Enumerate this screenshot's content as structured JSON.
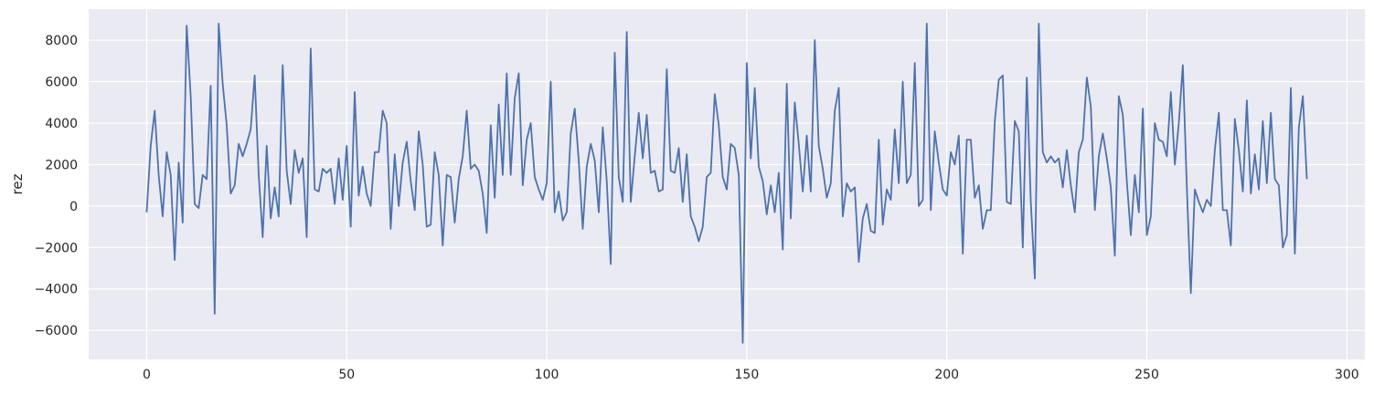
{
  "chart_data": {
    "type": "line",
    "title": "",
    "xlabel": "",
    "ylabel": "rez",
    "xlim": [
      -14.5,
      304.5
    ],
    "ylim": [
      -7400,
      9500
    ],
    "xticks": [
      0,
      50,
      100,
      150,
      200,
      250,
      300
    ],
    "yticks": [
      -6000,
      -4000,
      -2000,
      0,
      2000,
      4000,
      6000,
      8000
    ],
    "grid": true,
    "background": "#eaeaf2",
    "grid_color": "#ffffff",
    "line_color": "#4c72b0",
    "series": [
      {
        "x_start": 0,
        "values": [
          -300,
          2900,
          4600,
          1500,
          -500,
          2600,
          1500,
          -2600,
          2100,
          -800,
          8700,
          5300,
          100,
          -100,
          1500,
          1300,
          5800,
          -5200,
          8800,
          5900,
          3900,
          600,
          1000,
          3000,
          2400,
          3000,
          3700,
          6300,
          1500,
          -1500,
          2900,
          -600,
          900,
          -500,
          6800,
          1700,
          100,
          2700,
          1600,
          2300,
          -1500,
          7600,
          800,
          700,
          1800,
          1600,
          1800,
          100,
          2300,
          300,
          2900,
          -1000,
          5500,
          500,
          1900,
          600,
          0,
          2600,
          2600,
          4600,
          4000,
          -1100,
          2500,
          0,
          2100,
          3100,
          1200,
          -200,
          3600,
          2000,
          -1000,
          -900,
          2600,
          1500,
          -1900,
          1500,
          1400,
          -800,
          1300,
          2400,
          4600,
          1800,
          2000,
          1700,
          600,
          -1300,
          3900,
          400,
          4900,
          1500,
          6400,
          1500,
          5200,
          6400,
          1000,
          3200,
          4000,
          1400,
          800,
          300,
          1100,
          6000,
          -300,
          700,
          -700,
          -300,
          3500,
          4700,
          2200,
          -1100,
          1900,
          3000,
          2200,
          -300,
          3800,
          1200,
          -2800,
          7400,
          1400,
          200,
          8400,
          200,
          2400,
          4500,
          2300,
          4400,
          1600,
          1700,
          700,
          800,
          6600,
          1700,
          1600,
          2800,
          200,
          2500,
          -500,
          -1000,
          -1700,
          -1000,
          1400,
          1600,
          5400,
          3900,
          1400,
          800,
          3000,
          2800,
          1500,
          -6600,
          6900,
          2300,
          5700,
          1900,
          1200,
          -400,
          1000,
          -300,
          1600,
          -2100,
          5900,
          -600,
          5000,
          3000,
          700,
          3400,
          700,
          8000,
          2900,
          1800,
          400,
          1100,
          4600,
          5700,
          -500,
          1100,
          700,
          900,
          -2700,
          -600,
          100,
          -1200,
          -1300,
          3200,
          -900,
          800,
          300,
          3700,
          1100,
          6000,
          1100,
          1500,
          6900,
          0,
          300,
          8800,
          -200,
          3600,
          2100,
          800,
          500,
          2600,
          2000,
          3400,
          -2300,
          3200,
          3200,
          400,
          1000,
          -1100,
          -200,
          -200,
          4100,
          6100,
          6300,
          200,
          100,
          4100,
          3600,
          -2000,
          6200,
          200,
          -3500,
          8800,
          2600,
          2100,
          2400,
          2100,
          2300,
          900,
          2700,
          1000,
          -300,
          2600,
          3200,
          6200,
          4800,
          -200,
          2400,
          3500,
          2300,
          900,
          -2400,
          5300,
          4400,
          1200,
          -1400,
          1500,
          -300,
          4700,
          -1400,
          -500,
          4000,
          3200,
          3100,
          2400,
          5500,
          2000,
          4000,
          6800,
          900,
          -4200,
          800,
          200,
          -300,
          300,
          0,
          2700,
          4500,
          -200,
          -200,
          -1900,
          4200,
          2700,
          700,
          5100,
          600,
          2500,
          800,
          4100,
          1100,
          4500,
          1300,
          1000,
          -2000,
          -1400,
          5700,
          -2300,
          3800,
          5300,
          1300
        ]
      }
    ]
  }
}
